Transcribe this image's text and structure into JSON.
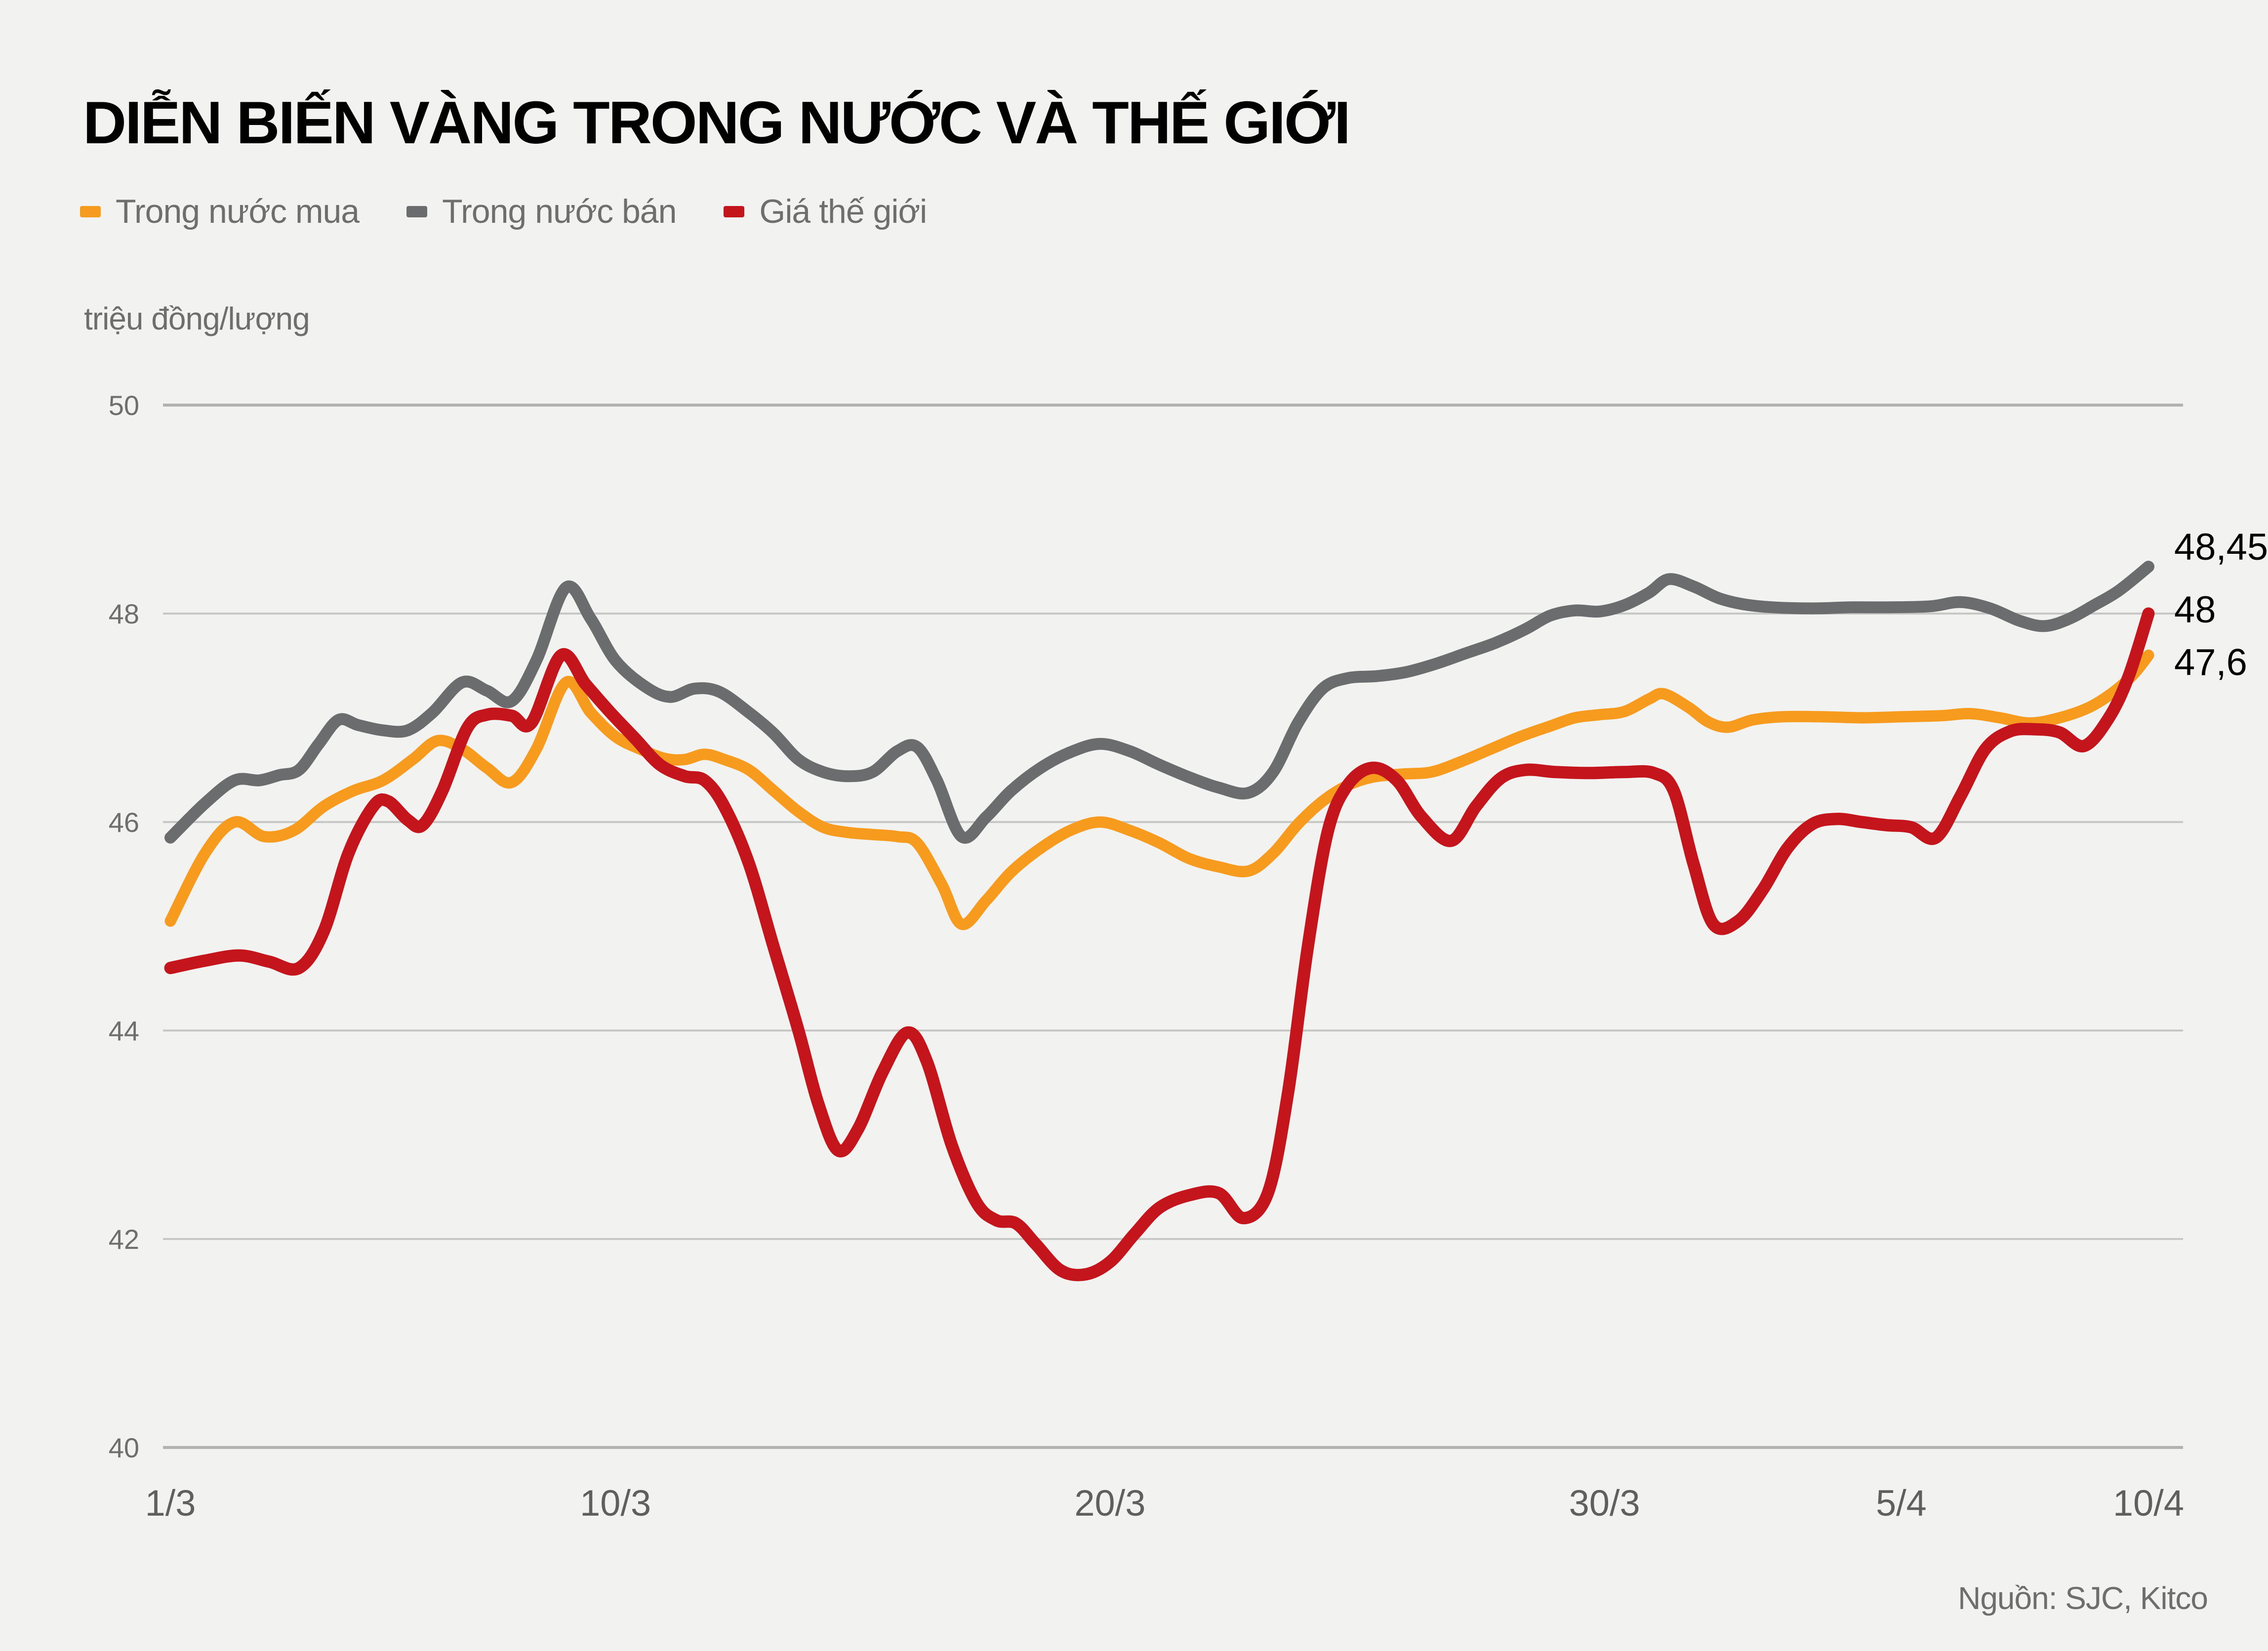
{
  "title": "DIỄN BIẾN VÀNG TRONG NƯỚC VÀ THẾ GIỚI",
  "unit_label": "triệu đồng/lượng",
  "source": "Nguồn: SJC, Kitco",
  "colors": {
    "background": "#f2f2f1",
    "grid_inner": "#c7c7c6",
    "grid_outer": "#b2b2b1",
    "tick_text": "#6e6e6e",
    "title_text": "#010101",
    "end_label_text": "#000000"
  },
  "chart_data": {
    "type": "line",
    "title": "DIỄN BIẾN VÀNG TRONG NƯỚC VÀ THẾ GIỚI",
    "ylabel": "triệu đồng/lượng",
    "ylim": [
      40,
      50
    ],
    "yticks": [
      50,
      48,
      46,
      44,
      42,
      40
    ],
    "grid": "horizontal",
    "legend_position": "top-left",
    "x_unit": "days since 1/3",
    "xlim_days": [
      0,
      40
    ],
    "xticks": [
      {
        "day": 0,
        "label": "1/3"
      },
      {
        "day": 9,
        "label": "10/3"
      },
      {
        "day": 19,
        "label": "20/3"
      },
      {
        "day": 29,
        "label": "30/3"
      },
      {
        "day": 35,
        "label": "5/4"
      },
      {
        "day": 40,
        "label": "10/4"
      }
    ],
    "series": [
      {
        "name": "Trong nước mua",
        "color": "#f79b1e",
        "end_label": "47,6",
        "end_value": 47.6,
        "points": [
          [
            0,
            45.05
          ],
          [
            0.7,
            45.7
          ],
          [
            1.3,
            46.0
          ],
          [
            1.9,
            45.86
          ],
          [
            2.5,
            45.92
          ],
          [
            3.1,
            46.15
          ],
          [
            3.7,
            46.3
          ],
          [
            4.3,
            46.4
          ],
          [
            4.9,
            46.6
          ],
          [
            5.4,
            46.78
          ],
          [
            5.9,
            46.7
          ],
          [
            6.4,
            46.52
          ],
          [
            6.9,
            46.38
          ],
          [
            7.4,
            46.7
          ],
          [
            8.0,
            47.34
          ],
          [
            8.5,
            47.05
          ],
          [
            9.0,
            46.82
          ],
          [
            9.5,
            46.7
          ],
          [
            10.0,
            46.61
          ],
          [
            10.4,
            46.6
          ],
          [
            10.8,
            46.65
          ],
          [
            11.2,
            46.6
          ],
          [
            11.7,
            46.5
          ],
          [
            12.2,
            46.3
          ],
          [
            12.7,
            46.1
          ],
          [
            13.2,
            45.95
          ],
          [
            13.7,
            45.9
          ],
          [
            14.2,
            45.88
          ],
          [
            14.7,
            45.86
          ],
          [
            15.1,
            45.8
          ],
          [
            15.6,
            45.4
          ],
          [
            16.0,
            45.02
          ],
          [
            16.5,
            45.25
          ],
          [
            17.0,
            45.52
          ],
          [
            17.6,
            45.75
          ],
          [
            18.2,
            45.92
          ],
          [
            18.8,
            46.0
          ],
          [
            19.4,
            45.92
          ],
          [
            20.0,
            45.8
          ],
          [
            20.6,
            45.65
          ],
          [
            21.2,
            45.57
          ],
          [
            21.8,
            45.53
          ],
          [
            22.3,
            45.7
          ],
          [
            22.8,
            45.98
          ],
          [
            23.3,
            46.2
          ],
          [
            23.8,
            46.35
          ],
          [
            24.3,
            46.43
          ],
          [
            24.9,
            46.46
          ],
          [
            25.5,
            46.48
          ],
          [
            26.1,
            46.58
          ],
          [
            26.7,
            46.7
          ],
          [
            27.3,
            46.82
          ],
          [
            27.9,
            46.92
          ],
          [
            28.4,
            47.0
          ],
          [
            28.9,
            47.03
          ],
          [
            29.4,
            47.06
          ],
          [
            29.9,
            47.18
          ],
          [
            30.2,
            47.23
          ],
          [
            30.7,
            47.1
          ],
          [
            31.1,
            46.96
          ],
          [
            31.5,
            46.91
          ],
          [
            32.0,
            46.98
          ],
          [
            32.6,
            47.01
          ],
          [
            33.4,
            47.01
          ],
          [
            34.2,
            47.0
          ],
          [
            35.0,
            47.01
          ],
          [
            35.8,
            47.02
          ],
          [
            36.4,
            47.04
          ],
          [
            37.0,
            47.0
          ],
          [
            37.6,
            46.95
          ],
          [
            38.2,
            47.0
          ],
          [
            38.8,
            47.1
          ],
          [
            39.3,
            47.25
          ],
          [
            39.7,
            47.42
          ],
          [
            40,
            47.6
          ]
        ]
      },
      {
        "name": "Trong nước bán",
        "color": "#6b6c6e",
        "end_label": "48,45",
        "end_value": 48.45,
        "points": [
          [
            0,
            45.85
          ],
          [
            0.7,
            46.18
          ],
          [
            1.3,
            46.4
          ],
          [
            1.8,
            46.4
          ],
          [
            2.2,
            46.45
          ],
          [
            2.6,
            46.5
          ],
          [
            3.0,
            46.75
          ],
          [
            3.4,
            46.98
          ],
          [
            3.8,
            46.93
          ],
          [
            4.3,
            46.88
          ],
          [
            4.8,
            46.88
          ],
          [
            5.3,
            47.05
          ],
          [
            5.9,
            47.34
          ],
          [
            6.4,
            47.26
          ],
          [
            6.9,
            47.16
          ],
          [
            7.4,
            47.55
          ],
          [
            8.0,
            48.25
          ],
          [
            8.5,
            47.95
          ],
          [
            9.0,
            47.55
          ],
          [
            9.6,
            47.3
          ],
          [
            10.1,
            47.2
          ],
          [
            10.6,
            47.28
          ],
          [
            11.1,
            47.25
          ],
          [
            11.7,
            47.05
          ],
          [
            12.2,
            46.85
          ],
          [
            12.7,
            46.6
          ],
          [
            13.2,
            46.48
          ],
          [
            13.7,
            46.44
          ],
          [
            14.2,
            46.48
          ],
          [
            14.7,
            46.68
          ],
          [
            15.1,
            46.72
          ],
          [
            15.5,
            46.4
          ],
          [
            16.0,
            45.86
          ],
          [
            16.5,
            46.05
          ],
          [
            17.0,
            46.3
          ],
          [
            17.6,
            46.52
          ],
          [
            18.2,
            46.67
          ],
          [
            18.8,
            46.75
          ],
          [
            19.4,
            46.68
          ],
          [
            20.0,
            46.55
          ],
          [
            20.6,
            46.43
          ],
          [
            21.2,
            46.33
          ],
          [
            21.8,
            46.28
          ],
          [
            22.3,
            46.48
          ],
          [
            22.8,
            46.95
          ],
          [
            23.3,
            47.28
          ],
          [
            23.8,
            47.38
          ],
          [
            24.4,
            47.4
          ],
          [
            25.0,
            47.44
          ],
          [
            25.6,
            47.52
          ],
          [
            26.2,
            47.62
          ],
          [
            26.8,
            47.72
          ],
          [
            27.4,
            47.85
          ],
          [
            27.9,
            47.98
          ],
          [
            28.4,
            48.03
          ],
          [
            28.9,
            48.02
          ],
          [
            29.4,
            48.08
          ],
          [
            29.9,
            48.2
          ],
          [
            30.3,
            48.33
          ],
          [
            30.8,
            48.26
          ],
          [
            31.3,
            48.15
          ],
          [
            31.8,
            48.09
          ],
          [
            32.4,
            48.06
          ],
          [
            33.2,
            48.05
          ],
          [
            34.0,
            48.06
          ],
          [
            34.8,
            48.06
          ],
          [
            35.6,
            48.07
          ],
          [
            36.2,
            48.11
          ],
          [
            36.8,
            48.05
          ],
          [
            37.4,
            47.93
          ],
          [
            37.9,
            47.88
          ],
          [
            38.4,
            47.95
          ],
          [
            38.9,
            48.08
          ],
          [
            39.4,
            48.22
          ],
          [
            40,
            48.45
          ]
        ]
      },
      {
        "name": "Giá thế giới",
        "color": "#c4151c",
        "end_label": "48",
        "end_value": 48.0,
        "points": [
          [
            0,
            44.6
          ],
          [
            0.7,
            44.67
          ],
          [
            1.4,
            44.72
          ],
          [
            2.0,
            44.66
          ],
          [
            2.6,
            44.6
          ],
          [
            3.1,
            44.95
          ],
          [
            3.6,
            45.7
          ],
          [
            4.1,
            46.15
          ],
          [
            4.4,
            46.2
          ],
          [
            4.8,
            46.02
          ],
          [
            5.1,
            45.97
          ],
          [
            5.5,
            46.3
          ],
          [
            6.0,
            46.9
          ],
          [
            6.4,
            47.03
          ],
          [
            6.9,
            47.02
          ],
          [
            7.3,
            46.95
          ],
          [
            7.9,
            47.6
          ],
          [
            8.4,
            47.32
          ],
          [
            8.9,
            47.05
          ],
          [
            9.4,
            46.8
          ],
          [
            9.9,
            46.55
          ],
          [
            10.4,
            46.44
          ],
          [
            10.8,
            46.4
          ],
          [
            11.2,
            46.15
          ],
          [
            11.7,
            45.6
          ],
          [
            12.2,
            44.8
          ],
          [
            12.7,
            44.0
          ],
          [
            13.1,
            43.3
          ],
          [
            13.5,
            42.85
          ],
          [
            13.9,
            43.05
          ],
          [
            14.4,
            43.6
          ],
          [
            14.9,
            43.98
          ],
          [
            15.3,
            43.7
          ],
          [
            15.8,
            42.9
          ],
          [
            16.3,
            42.35
          ],
          [
            16.7,
            42.18
          ],
          [
            17.1,
            42.15
          ],
          [
            17.5,
            41.95
          ],
          [
            18.0,
            41.7
          ],
          [
            18.5,
            41.66
          ],
          [
            19.0,
            41.78
          ],
          [
            19.5,
            42.05
          ],
          [
            20.0,
            42.3
          ],
          [
            20.6,
            42.42
          ],
          [
            21.2,
            42.44
          ],
          [
            21.7,
            42.2
          ],
          [
            22.2,
            42.45
          ],
          [
            22.6,
            43.4
          ],
          [
            23.0,
            44.8
          ],
          [
            23.4,
            45.9
          ],
          [
            23.8,
            46.35
          ],
          [
            24.3,
            46.52
          ],
          [
            24.8,
            46.4
          ],
          [
            25.3,
            46.05
          ],
          [
            25.9,
            45.82
          ],
          [
            26.4,
            46.15
          ],
          [
            26.9,
            46.42
          ],
          [
            27.4,
            46.5
          ],
          [
            28.0,
            46.48
          ],
          [
            28.7,
            46.47
          ],
          [
            29.4,
            46.48
          ],
          [
            30.0,
            46.47
          ],
          [
            30.4,
            46.3
          ],
          [
            30.8,
            45.6
          ],
          [
            31.2,
            45.02
          ],
          [
            31.7,
            45.05
          ],
          [
            32.2,
            45.35
          ],
          [
            32.7,
            45.75
          ],
          [
            33.2,
            45.98
          ],
          [
            33.7,
            46.03
          ],
          [
            34.2,
            46.0
          ],
          [
            34.7,
            45.97
          ],
          [
            35.2,
            45.95
          ],
          [
            35.7,
            45.85
          ],
          [
            36.2,
            46.25
          ],
          [
            36.7,
            46.7
          ],
          [
            37.2,
            46.87
          ],
          [
            37.7,
            46.89
          ],
          [
            38.2,
            46.86
          ],
          [
            38.7,
            46.73
          ],
          [
            39.2,
            47.0
          ],
          [
            39.6,
            47.4
          ],
          [
            40,
            48.0
          ]
        ]
      }
    ]
  }
}
